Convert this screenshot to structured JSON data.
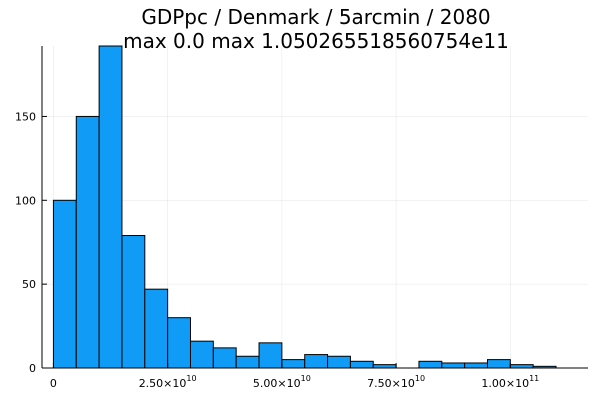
{
  "chart_data": {
    "type": "bar",
    "title": "GDPpc / Denmark / 5arcmin / 2080",
    "subtitle": "max 0.0  max 1.050265518560754e11",
    "xlabel": "",
    "ylabel": "",
    "xlim": [
      -2500000000.0,
      117000000000.0
    ],
    "ylim": [
      0,
      192
    ],
    "grid": true,
    "legend": "none",
    "bar_color": "#0f9bf6",
    "bin_width": 5000000000.0,
    "bin_edges": [
      0,
      5000000000.0,
      10000000000.0,
      15000000000.0,
      20000000000.0,
      25000000000.0,
      30000000000.0,
      35000000000.0,
      40000000000.0,
      45000000000.0,
      50000000000.0,
      55000000000.0,
      60000000000.0,
      65000000000.0,
      70000000000.0,
      75000000000.0,
      80000000000.0,
      85000000000.0,
      90000000000.0,
      95000000000.0,
      100000000000.0,
      105000000000.0,
      110000000000.0
    ],
    "counts": [
      100,
      150,
      192,
      79,
      47,
      30,
      16,
      12,
      7,
      15,
      5,
      8,
      7,
      4,
      2,
      0,
      4,
      3,
      3,
      5,
      2,
      1
    ],
    "x_ticks": [
      {
        "value": 0,
        "mantissa": "0",
        "exponent": ""
      },
      {
        "value": 25000000000.0,
        "mantissa": "2.50×10",
        "exponent": "10"
      },
      {
        "value": 50000000000.0,
        "mantissa": "5.00×10",
        "exponent": "10"
      },
      {
        "value": 75000000000.0,
        "mantissa": "7.50×10",
        "exponent": "10"
      },
      {
        "value": 100000000000.0,
        "mantissa": "1.00×10",
        "exponent": "11"
      }
    ],
    "y_ticks": [
      0,
      50,
      100,
      150
    ]
  }
}
